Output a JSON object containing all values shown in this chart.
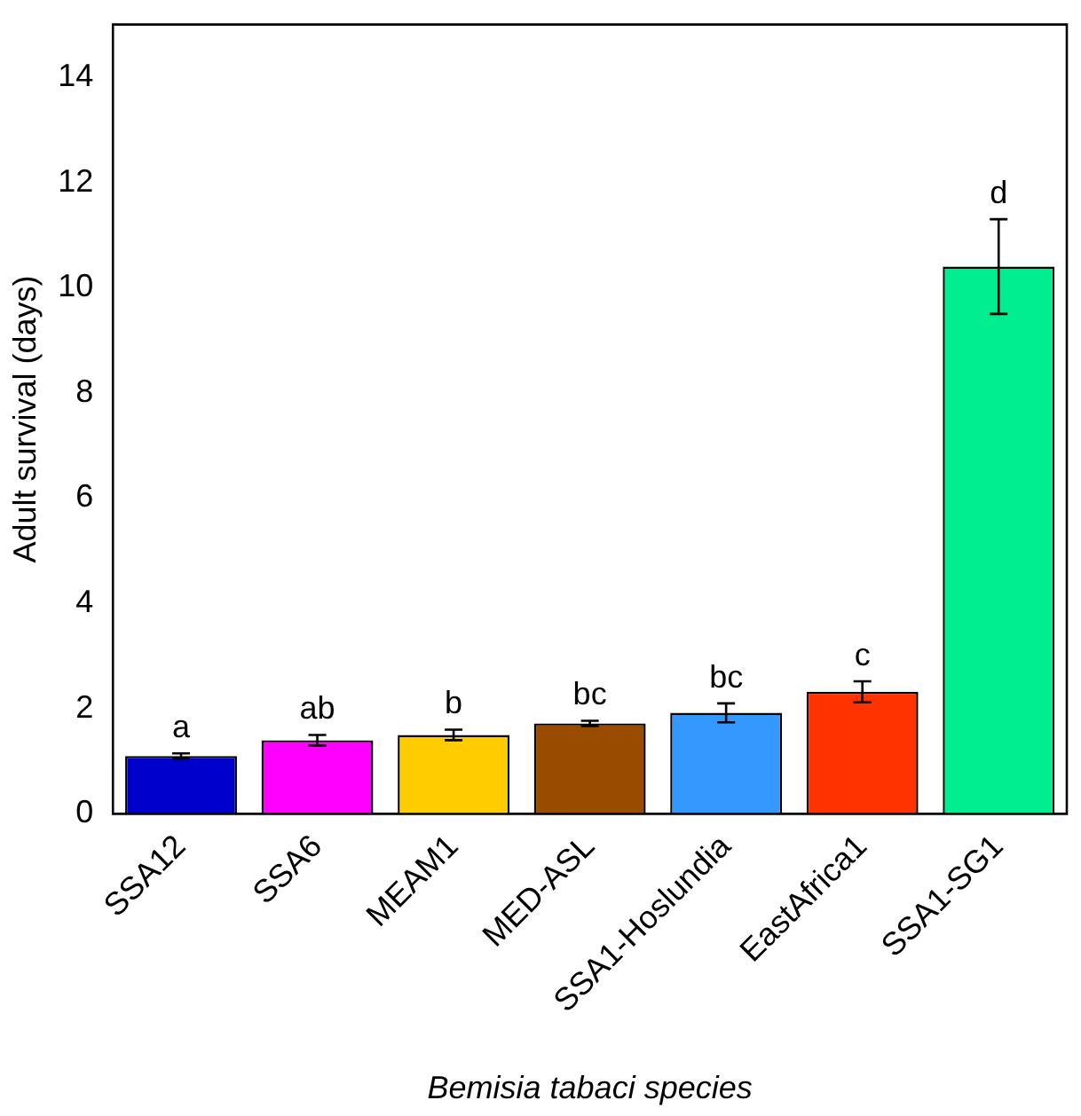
{
  "chart_data": {
    "type": "bar",
    "xlabel": "Bemisia tabaci species",
    "ylabel": "Adult survival (days)",
    "categories": [
      "SSA12",
      "SSA6",
      "MEAM1",
      "MED-ASL",
      "SSA1-Hoslundia",
      "EastAfrica1",
      "SSA1-SG1"
    ],
    "values": [
      1.1,
      1.4,
      1.5,
      1.72,
      1.92,
      2.32,
      10.4
    ],
    "errors": [
      0.05,
      0.1,
      0.1,
      0.05,
      0.18,
      0.2,
      0.9
    ],
    "colors": [
      "#0000cc",
      "#ff00ff",
      "#ffcc00",
      "#994c00",
      "#3399ff",
      "#ff3300",
      "#00ee90"
    ],
    "ylim": [
      0,
      15
    ],
    "yticks": [
      0,
      2,
      4,
      6,
      8,
      10,
      12,
      14
    ],
    "grid": false,
    "legend": false,
    "annotations": [
      "a",
      "ab",
      "b",
      "bc",
      "bc",
      "c",
      "d"
    ]
  }
}
